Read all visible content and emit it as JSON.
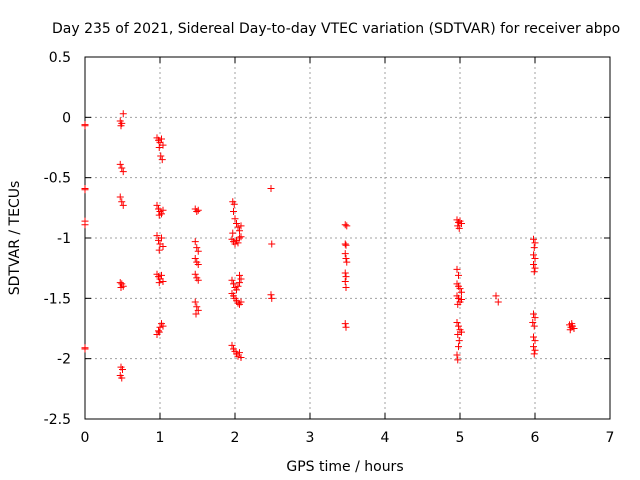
{
  "chart_data": {
    "type": "scatter",
    "title": "Day 235 of 2021, Sidereal Day-to-day VTEC variation (SDTVAR) for receiver abpo",
    "xlabel": "GPS time / hours",
    "ylabel": "SDTVAR / TECUs",
    "xlim": [
      0,
      7
    ],
    "ylim": [
      -2.5,
      0.5
    ],
    "xticks": [
      0,
      1,
      2,
      3,
      4,
      5,
      6,
      7
    ],
    "yticks": [
      0.5,
      0,
      -0.5,
      -1,
      -1.5,
      -2,
      -2.5
    ],
    "xtick_labels": [
      "0",
      "1",
      "2",
      "3",
      "4",
      "5",
      "6",
      "7"
    ],
    "ytick_labels": [
      "0.5",
      "0",
      "-0.5",
      "-1",
      "-1.5",
      "-2",
      "-2.5"
    ],
    "grid": true,
    "marker": "plus",
    "color": "#ff0000",
    "series": [
      {
        "name": "SDTVAR",
        "points": [
          [
            0.0,
            -0.07
          ],
          [
            0.0,
            -0.06
          ],
          [
            0.0,
            -0.59
          ],
          [
            0.0,
            -0.6
          ],
          [
            0.0,
            -0.86
          ],
          [
            0.0,
            -0.89
          ],
          [
            0.0,
            -1.91
          ],
          [
            0.0,
            -1.92
          ],
          [
            0.47,
            -0.03
          ],
          [
            0.49,
            -0.05
          ],
          [
            0.51,
            0.03
          ],
          [
            0.48,
            -0.07
          ],
          [
            0.47,
            -0.39
          ],
          [
            0.49,
            -0.42
          ],
          [
            0.51,
            -0.45
          ],
          [
            0.47,
            -0.66
          ],
          [
            0.49,
            -0.7
          ],
          [
            0.51,
            -0.73
          ],
          [
            0.47,
            -1.37
          ],
          [
            0.49,
            -1.38
          ],
          [
            0.51,
            -1.4
          ],
          [
            0.48,
            -1.41
          ],
          [
            0.48,
            -2.07
          ],
          [
            0.5,
            -2.09
          ],
          [
            0.47,
            -2.14
          ],
          [
            0.49,
            -2.16
          ],
          [
            0.96,
            -0.17
          ],
          [
            0.98,
            -0.19
          ],
          [
            1.0,
            -0.21
          ],
          [
            1.02,
            -0.18
          ],
          [
            1.04,
            -0.23
          ],
          [
            0.99,
            -0.25
          ],
          [
            1.01,
            -0.32
          ],
          [
            1.03,
            -0.35
          ],
          [
            0.96,
            -0.73
          ],
          [
            0.98,
            -0.76
          ],
          [
            1.0,
            -0.78
          ],
          [
            1.02,
            -0.8
          ],
          [
            1.04,
            -0.77
          ],
          [
            0.99,
            -0.81
          ],
          [
            0.96,
            -0.98
          ],
          [
            0.98,
            -1.02
          ],
          [
            1.0,
            -1.05
          ],
          [
            1.02,
            -1.0
          ],
          [
            1.04,
            -1.07
          ],
          [
            0.99,
            -1.1
          ],
          [
            0.96,
            -1.3
          ],
          [
            0.98,
            -1.32
          ],
          [
            1.0,
            -1.34
          ],
          [
            1.02,
            -1.31
          ],
          [
            1.04,
            -1.36
          ],
          [
            0.99,
            -1.37
          ],
          [
            0.96,
            -1.8
          ],
          [
            0.98,
            -1.77
          ],
          [
            1.0,
            -1.74
          ],
          [
            1.02,
            -1.71
          ],
          [
            1.04,
            -1.73
          ],
          [
            0.99,
            -1.78
          ],
          [
            1.47,
            -0.76
          ],
          [
            1.49,
            -0.78
          ],
          [
            1.51,
            -0.77
          ],
          [
            1.47,
            -1.03
          ],
          [
            1.49,
            -1.08
          ],
          [
            1.51,
            -1.11
          ],
          [
            1.47,
            -1.17
          ],
          [
            1.49,
            -1.2
          ],
          [
            1.51,
            -1.22
          ],
          [
            1.47,
            -1.3
          ],
          [
            1.49,
            -1.33
          ],
          [
            1.51,
            -1.35
          ],
          [
            1.47,
            -1.53
          ],
          [
            1.49,
            -1.57
          ],
          [
            1.51,
            -1.6
          ],
          [
            1.48,
            -1.63
          ],
          [
            1.97,
            -0.7
          ],
          [
            1.99,
            -0.72
          ],
          [
            1.98,
            -0.78
          ],
          [
            2.0,
            -0.84
          ],
          [
            2.02,
            -0.88
          ],
          [
            2.04,
            -0.91
          ],
          [
            2.06,
            -0.94
          ],
          [
            2.08,
            -0.9
          ],
          [
            1.97,
            -0.96
          ],
          [
            1.96,
            -1.01
          ],
          [
            1.98,
            -1.03
          ],
          [
            2.0,
            -1.05
          ],
          [
            2.02,
            -1.02
          ],
          [
            2.04,
            -1.04
          ],
          [
            2.06,
            -1.0
          ],
          [
            2.08,
            -0.99
          ],
          [
            1.96,
            -1.35
          ],
          [
            1.98,
            -1.38
          ],
          [
            2.0,
            -1.41
          ],
          [
            2.02,
            -1.43
          ],
          [
            2.04,
            -1.4
          ],
          [
            2.06,
            -1.37
          ],
          [
            2.08,
            -1.34
          ],
          [
            2.06,
            -1.31
          ],
          [
            1.96,
            -1.46
          ],
          [
            1.98,
            -1.48
          ],
          [
            2.0,
            -1.5
          ],
          [
            2.02,
            -1.52
          ],
          [
            2.04,
            -1.54
          ],
          [
            2.06,
            -1.55
          ],
          [
            2.08,
            -1.53
          ],
          [
            1.96,
            -1.89
          ],
          [
            1.98,
            -1.92
          ],
          [
            2.0,
            -1.94
          ],
          [
            2.02,
            -1.96
          ],
          [
            2.04,
            -1.98
          ],
          [
            2.06,
            -1.95
          ],
          [
            2.08,
            -1.99
          ],
          [
            2.48,
            -0.59
          ],
          [
            2.49,
            -1.05
          ],
          [
            2.48,
            -1.47
          ],
          [
            2.49,
            -1.5
          ],
          [
            3.47,
            -0.89
          ],
          [
            3.49,
            -0.9
          ],
          [
            3.47,
            -1.05
          ],
          [
            3.48,
            -1.06
          ],
          [
            3.47,
            -1.13
          ],
          [
            3.48,
            -1.17
          ],
          [
            3.49,
            -1.2
          ],
          [
            3.47,
            -1.29
          ],
          [
            3.48,
            -1.32
          ],
          [
            3.47,
            -1.36
          ],
          [
            3.48,
            -1.41
          ],
          [
            3.47,
            -1.71
          ],
          [
            3.48,
            -1.74
          ],
          [
            4.96,
            -0.85
          ],
          [
            4.98,
            -0.87
          ],
          [
            5.0,
            -0.86
          ],
          [
            5.02,
            -0.88
          ],
          [
            4.97,
            -0.9
          ],
          [
            4.99,
            -0.92
          ],
          [
            4.96,
            -1.26
          ],
          [
            4.98,
            -1.31
          ],
          [
            4.96,
            -1.38
          ],
          [
            4.98,
            -1.4
          ],
          [
            5.0,
            -1.42
          ],
          [
            5.02,
            -1.45
          ],
          [
            4.96,
            -1.48
          ],
          [
            4.98,
            -1.5
          ],
          [
            5.0,
            -1.53
          ],
          [
            5.02,
            -1.51
          ],
          [
            4.97,
            -1.55
          ],
          [
            4.96,
            -1.7
          ],
          [
            4.98,
            -1.73
          ],
          [
            5.0,
            -1.76
          ],
          [
            5.02,
            -1.78
          ],
          [
            4.97,
            -1.8
          ],
          [
            4.99,
            -1.85
          ],
          [
            4.98,
            -1.9
          ],
          [
            4.96,
            -1.97
          ],
          [
            4.97,
            -2.01
          ],
          [
            5.48,
            -1.48
          ],
          [
            5.51,
            -1.53
          ],
          [
            5.98,
            -1.01
          ],
          [
            6.0,
            -1.04
          ],
          [
            5.99,
            -1.08
          ],
          [
            5.98,
            -1.14
          ],
          [
            6.0,
            -1.17
          ],
          [
            5.98,
            -1.22
          ],
          [
            6.0,
            -1.25
          ],
          [
            5.99,
            -1.28
          ],
          [
            5.98,
            -1.63
          ],
          [
            6.0,
            -1.66
          ],
          [
            5.97,
            -1.7
          ],
          [
            5.99,
            -1.73
          ],
          [
            5.98,
            -1.82
          ],
          [
            6.0,
            -1.85
          ],
          [
            5.98,
            -1.9
          ],
          [
            6.0,
            -1.93
          ],
          [
            5.99,
            -1.96
          ],
          [
            6.46,
            -1.72
          ],
          [
            6.48,
            -1.74
          ],
          [
            6.5,
            -1.73
          ],
          [
            6.52,
            -1.75
          ],
          [
            6.47,
            -1.76
          ],
          [
            6.49,
            -1.71
          ]
        ]
      }
    ]
  }
}
